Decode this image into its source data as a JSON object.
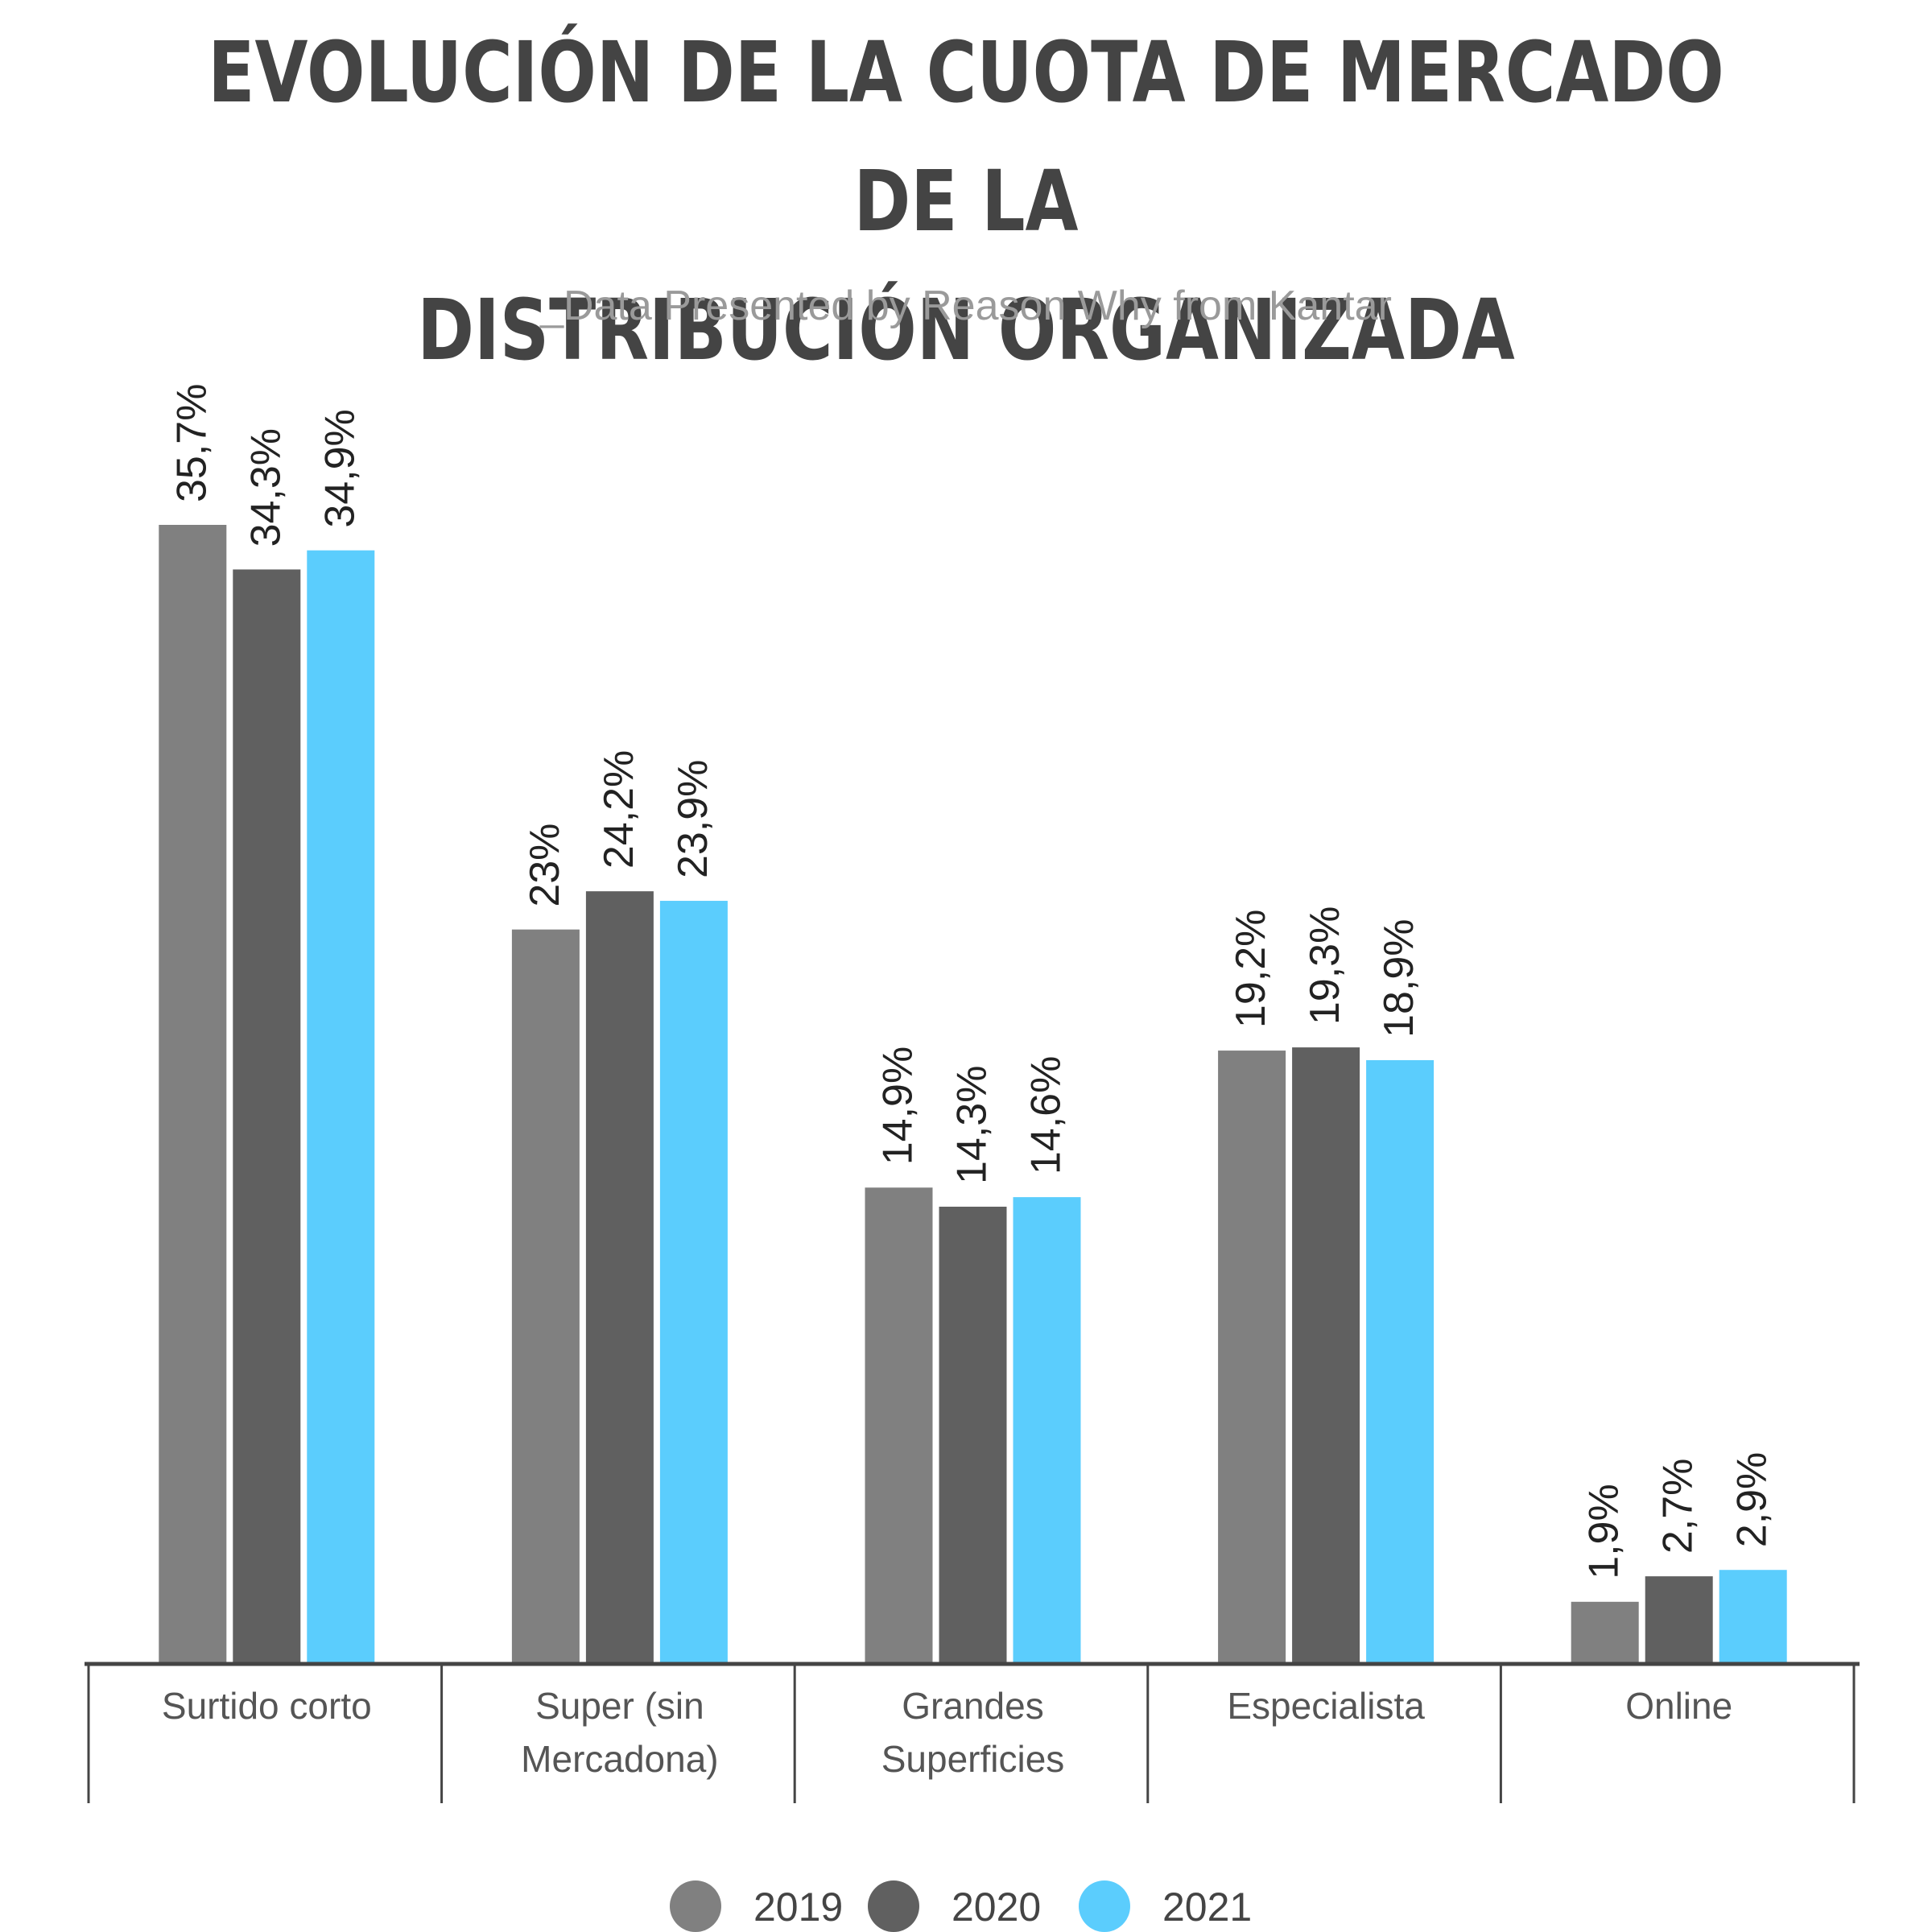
{
  "chart_data": {
    "type": "bar",
    "title_line1": "EVOLUCIÓN DE LA CUOTA DE MERCADO DE LA",
    "title_line2": "DISTRIBUCIÓN ORGANIZADA",
    "subtitle": "_Data Presented by Reason Why from Kantar",
    "categories": [
      [
        "Surtido corto"
      ],
      [
        "Super (sin",
        "Mercadona)"
      ],
      [
        "Grandes",
        "Superficies"
      ],
      [
        "Especialista"
      ],
      [
        "Online"
      ]
    ],
    "series": [
      {
        "name": "2019",
        "color": "#808080",
        "values": [
          35.7,
          23,
          14.9,
          19.2,
          1.9
        ],
        "labels": [
          "35,7%",
          "23%",
          "14,9%",
          "19,2%",
          "1,9%"
        ]
      },
      {
        "name": "2020",
        "color": "#606060",
        "values": [
          34.3,
          24.2,
          14.3,
          19.3,
          2.7
        ],
        "labels": [
          "34,3%",
          "24,2%",
          "14,3%",
          "19,3%",
          "2,7%"
        ]
      },
      {
        "name": "2021",
        "color": "#5bcdfd",
        "values": [
          34.9,
          23.9,
          14.6,
          18.9,
          2.9
        ],
        "labels": [
          "34,9%",
          "23,9%",
          "14,6%",
          "18,9%",
          "2,9%"
        ]
      }
    ],
    "ylim": [
      0,
      35.7
    ],
    "legend_position": "bottom",
    "grid": false
  }
}
